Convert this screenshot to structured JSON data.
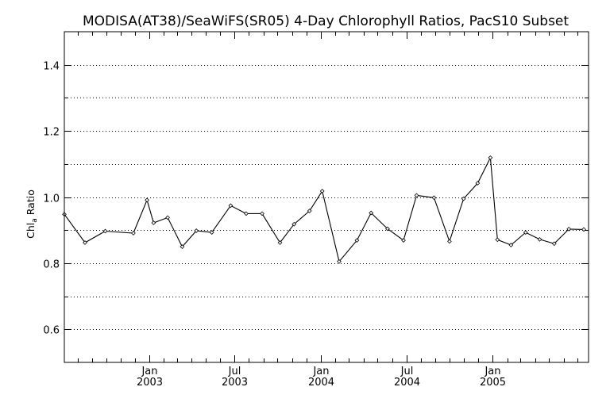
{
  "chart_data": {
    "type": "line",
    "title": "MODISA(AT38)/SeaWiFS(SR05) 4-Day Chlorophyll Ratios, PacS10 Subset",
    "ylabel_main": "Chl",
    "ylabel_sub": "a",
    "ylabel_tail": " Ratio",
    "xlabel": "",
    "ylim": [
      0.5,
      1.5
    ],
    "xlim": [
      "2002-07-04",
      "2005-07-24"
    ],
    "yticks": [
      0.6,
      0.8,
      1.0,
      1.2,
      1.4
    ],
    "ytick_labels": [
      "0.6",
      "0.8",
      "1.0",
      "1.2",
      "1.4"
    ],
    "ygrid": [
      0.6,
      0.7,
      0.8,
      0.9,
      1.0,
      1.1,
      1.2,
      1.3,
      1.4
    ],
    "grid": "horizontal-dotted",
    "xticks": [
      {
        "date": "2003-01-01",
        "month": "Jan",
        "year": "2003"
      },
      {
        "date": "2003-07-01",
        "month": "Jul",
        "year": "2003"
      },
      {
        "date": "2004-01-01",
        "month": "Jan",
        "year": "2004"
      },
      {
        "date": "2004-07-01",
        "month": "Jul",
        "year": "2004"
      },
      {
        "date": "2005-01-01",
        "month": "Jan",
        "year": "2005"
      }
    ],
    "xminor": [
      "2002-08-01",
      "2002-09-01",
      "2002-10-01",
      "2002-11-01",
      "2002-12-01",
      "2003-02-01",
      "2003-03-01",
      "2003-04-01",
      "2003-05-01",
      "2003-06-01",
      "2003-08-01",
      "2003-09-01",
      "2003-10-01",
      "2003-11-01",
      "2003-12-01",
      "2004-02-01",
      "2004-03-01",
      "2004-04-01",
      "2004-05-01",
      "2004-06-01",
      "2004-08-01",
      "2004-09-01",
      "2004-10-01",
      "2004-11-01",
      "2004-12-01",
      "2005-02-01",
      "2005-03-01",
      "2005-04-01",
      "2005-05-01",
      "2005-06-01",
      "2005-07-01"
    ],
    "series": [
      {
        "color": "#000000",
        "points": [
          {
            "x": "2002-07-04",
            "y": 0.948
          },
          {
            "x": "2002-08-17",
            "y": 0.862
          },
          {
            "x": "2002-09-29",
            "y": 0.897
          },
          {
            "x": "2002-11-28",
            "y": 0.891
          },
          {
            "x": "2002-12-27",
            "y": 0.991
          },
          {
            "x": "2003-01-10",
            "y": 0.922
          },
          {
            "x": "2003-02-09",
            "y": 0.938
          },
          {
            "x": "2003-03-12",
            "y": 0.85
          },
          {
            "x": "2003-04-11",
            "y": 0.898
          },
          {
            "x": "2003-05-14",
            "y": 0.893
          },
          {
            "x": "2003-06-23",
            "y": 0.974
          },
          {
            "x": "2003-07-26",
            "y": 0.95
          },
          {
            "x": "2003-08-29",
            "y": 0.95
          },
          {
            "x": "2003-10-06",
            "y": 0.862
          },
          {
            "x": "2003-11-05",
            "y": 0.918
          },
          {
            "x": "2003-12-08",
            "y": 0.958
          },
          {
            "x": "2004-01-04",
            "y": 1.018
          },
          {
            "x": "2004-02-09",
            "y": 0.805
          },
          {
            "x": "2004-03-18",
            "y": 0.869
          },
          {
            "x": "2004-04-17",
            "y": 0.952
          },
          {
            "x": "2004-05-22",
            "y": 0.904
          },
          {
            "x": "2004-06-25",
            "y": 0.869
          },
          {
            "x": "2004-07-23",
            "y": 1.005
          },
          {
            "x": "2004-08-29",
            "y": 0.998
          },
          {
            "x": "2004-10-01",
            "y": 0.866
          },
          {
            "x": "2004-10-31",
            "y": 0.995
          },
          {
            "x": "2004-11-30",
            "y": 1.042
          },
          {
            "x": "2004-12-27",
            "y": 1.119
          },
          {
            "x": "2005-01-11",
            "y": 0.871
          },
          {
            "x": "2005-02-09",
            "y": 0.855
          },
          {
            "x": "2005-03-12",
            "y": 0.893
          },
          {
            "x": "2005-04-11",
            "y": 0.872
          },
          {
            "x": "2005-05-12",
            "y": 0.859
          },
          {
            "x": "2005-06-12",
            "y": 0.903
          },
          {
            "x": "2005-07-14",
            "y": 0.902
          }
        ]
      }
    ]
  }
}
